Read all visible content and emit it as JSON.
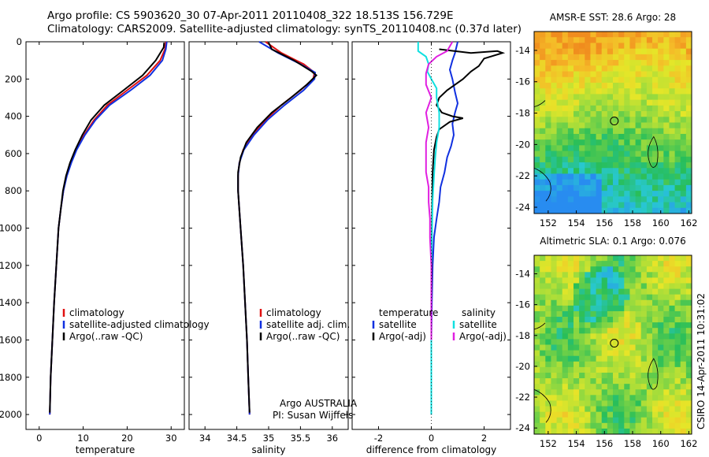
{
  "header": {
    "line1": "Argo profile: CS 5903620_30 07-Apr-2011 20110408_322 18.513S 156.729E",
    "line2": "Climatology: CARS2009. Satellite-adjusted climatology: synTS_20110408.nc (0.37d later)"
  },
  "colors": {
    "clim": "#e01010",
    "sat": "#1030e0",
    "argo": "#000000",
    "sal_sat": "#10e0e0",
    "sal_argo": "#e020e0"
  },
  "credits": {
    "org": "Argo AUSTRALIA",
    "pi": "PI: Susan Wijffels",
    "side": "CSIRO 14-Apr-2011 10:31:02"
  },
  "chart_data": [
    {
      "type": "line",
      "id": "temperature",
      "xlabel": "temperature",
      "xlim": [
        -3,
        33
      ],
      "ylim": [
        0,
        2080
      ],
      "xticks": [
        0,
        10,
        20,
        30
      ],
      "yticks": [
        0,
        200,
        400,
        600,
        800,
        1000,
        1200,
        1400,
        1600,
        1800,
        2000
      ],
      "legend": [
        "climatology",
        "satellite-adjusted climatology",
        "Argo(..raw -QC)"
      ],
      "series": [
        {
          "name": "climatology",
          "color": "clim",
          "points": [
            [
              28.8,
              0
            ],
            [
              28.6,
              40
            ],
            [
              27.5,
              100
            ],
            [
              24.5,
              180
            ],
            [
              20,
              260
            ],
            [
              15.5,
              340
            ],
            [
              12.5,
              420
            ],
            [
              10.2,
              500
            ],
            [
              8.4,
              580
            ],
            [
              7.2,
              650
            ],
            [
              6.2,
              720
            ],
            [
              5.5,
              800
            ],
            [
              4.9,
              900
            ],
            [
              4.4,
              1000
            ],
            [
              3.9,
              1200
            ],
            [
              3.4,
              1400
            ],
            [
              3.0,
              1600
            ],
            [
              2.6,
              1800
            ],
            [
              2.4,
              2000
            ]
          ]
        },
        {
          "name": "satellite-adjusted climatology",
          "color": "sat",
          "points": [
            [
              29.0,
              0
            ],
            [
              28.8,
              40
            ],
            [
              28,
              100
            ],
            [
              25.2,
              180
            ],
            [
              20.8,
              260
            ],
            [
              16,
              340
            ],
            [
              12.8,
              420
            ],
            [
              10.4,
              500
            ],
            [
              8.5,
              580
            ],
            [
              7.3,
              650
            ],
            [
              6.3,
              720
            ],
            [
              5.5,
              800
            ],
            [
              4.9,
              900
            ],
            [
              4.4,
              1000
            ],
            [
              3.9,
              1200
            ],
            [
              3.4,
              1400
            ],
            [
              3.0,
              1600
            ],
            [
              2.6,
              1800
            ],
            [
              2.4,
              2000
            ]
          ]
        },
        {
          "name": "Argo(..raw -QC)",
          "color": "argo",
          "points": [
            [
              28.4,
              5
            ],
            [
              28.3,
              30
            ],
            [
              26.5,
              100
            ],
            [
              23.5,
              180
            ],
            [
              19.2,
              260
            ],
            [
              14.8,
              340
            ],
            [
              11.8,
              420
            ],
            [
              9.8,
              500
            ],
            [
              8.2,
              580
            ],
            [
              7.0,
              650
            ],
            [
              6.1,
              720
            ],
            [
              5.4,
              800
            ],
            [
              4.9,
              900
            ],
            [
              4.4,
              1000
            ],
            [
              3.9,
              1200
            ],
            [
              3.4,
              1400
            ],
            [
              3.0,
              1600
            ],
            [
              2.6,
              1800
            ],
            [
              2.4,
              1990
            ]
          ]
        }
      ]
    },
    {
      "type": "line",
      "id": "salinity",
      "xlabel": "salinity",
      "xlim": [
        33.75,
        36.25
      ],
      "ylim": [
        0,
        2080
      ],
      "xticks": [
        34,
        34.5,
        35,
        35.5,
        36
      ],
      "yticks": [],
      "legend": [
        "climatology",
        "satellite adj. clim.",
        "Argo(..raw -QC)"
      ],
      "series": [
        {
          "name": "climatology",
          "color": "clim",
          "points": [
            [
              34.95,
              0
            ],
            [
              35.2,
              60
            ],
            [
              35.55,
              120
            ],
            [
              35.72,
              165
            ],
            [
              35.7,
              200
            ],
            [
              35.5,
              260
            ],
            [
              35.2,
              340
            ],
            [
              34.95,
              420
            ],
            [
              34.75,
              500
            ],
            [
              34.6,
              580
            ],
            [
              34.54,
              650
            ],
            [
              34.52,
              720
            ],
            [
              34.52,
              800
            ],
            [
              34.54,
              900
            ],
            [
              34.56,
              1000
            ],
            [
              34.6,
              1200
            ],
            [
              34.63,
              1400
            ],
            [
              34.66,
              1600
            ],
            [
              34.68,
              1800
            ],
            [
              34.7,
              2000
            ]
          ]
        },
        {
          "name": "satellite adj. clim.",
          "color": "sat",
          "points": [
            [
              34.85,
              0
            ],
            [
              35.15,
              60
            ],
            [
              35.5,
              120
            ],
            [
              35.73,
              165
            ],
            [
              35.72,
              200
            ],
            [
              35.55,
              260
            ],
            [
              35.25,
              340
            ],
            [
              34.98,
              420
            ],
            [
              34.77,
              500
            ],
            [
              34.61,
              580
            ],
            [
              34.54,
              650
            ],
            [
              34.52,
              720
            ],
            [
              34.52,
              800
            ],
            [
              34.54,
              900
            ],
            [
              34.56,
              1000
            ],
            [
              34.6,
              1200
            ],
            [
              34.63,
              1400
            ],
            [
              34.66,
              1600
            ],
            [
              34.68,
              1800
            ],
            [
              34.7,
              2000
            ]
          ]
        },
        {
          "name": "Argo(..raw -QC)",
          "color": "argo",
          "points": [
            [
              35.0,
              5
            ],
            [
              35.05,
              40
            ],
            [
              35.4,
              100
            ],
            [
              35.68,
              160
            ],
            [
              35.75,
              180
            ],
            [
              35.6,
              230
            ],
            [
              35.35,
              300
            ],
            [
              35.05,
              380
            ],
            [
              34.82,
              460
            ],
            [
              34.65,
              540
            ],
            [
              34.56,
              620
            ],
            [
              34.52,
              700
            ],
            [
              34.52,
              800
            ],
            [
              34.54,
              900
            ],
            [
              34.56,
              1000
            ],
            [
              34.6,
              1200
            ],
            [
              34.63,
              1400
            ],
            [
              34.66,
              1600
            ],
            [
              34.68,
              1800
            ],
            [
              34.7,
              1990
            ]
          ]
        }
      ]
    },
    {
      "type": "line",
      "id": "difference",
      "xlabel": "difference from climatology",
      "xlim": [
        -3,
        3
      ],
      "ylim": [
        0,
        2080
      ],
      "xticks": [
        -2,
        0,
        2
      ],
      "yticks": [],
      "legend_left_title": "temperature",
      "legend_right_title": "salinity",
      "legend": [
        "satellite",
        "Argo(-adj)",
        "satellite",
        "Argo(-adj)"
      ],
      "series": [
        {
          "name": "temperature satellite",
          "color": "sat",
          "points": [
            [
              1.0,
              0
            ],
            [
              0.9,
              60
            ],
            [
              0.8,
              100
            ],
            [
              0.7,
              150
            ],
            [
              0.8,
              200
            ],
            [
              0.9,
              270
            ],
            [
              1.0,
              330
            ],
            [
              0.9,
              380
            ],
            [
              0.8,
              440
            ],
            [
              0.85,
              500
            ],
            [
              0.75,
              560
            ],
            [
              0.6,
              620
            ],
            [
              0.5,
              700
            ],
            [
              0.35,
              780
            ],
            [
              0.3,
              860
            ],
            [
              0.2,
              950
            ],
            [
              0.1,
              1050
            ],
            [
              0.05,
              1200
            ],
            [
              0.02,
              1400
            ],
            [
              0.0,
              1600
            ],
            [
              0.0,
              2000
            ]
          ]
        },
        {
          "name": "temperature Argo(-adj)",
          "color": "argo",
          "points": [
            [
              0.3,
              40
            ],
            [
              1.5,
              60
            ],
            [
              2.5,
              50
            ],
            [
              2.7,
              60
            ],
            [
              2.0,
              90
            ],
            [
              1.8,
              130
            ],
            [
              1.5,
              160
            ],
            [
              1.2,
              200
            ],
            [
              0.6,
              260
            ],
            [
              0.3,
              300
            ],
            [
              0.2,
              340
            ],
            [
              0.4,
              380
            ],
            [
              0.8,
              400
            ],
            [
              1.2,
              410
            ],
            [
              0.7,
              430
            ],
            [
              0.3,
              470
            ],
            [
              0.2,
              510
            ],
            [
              0.1,
              580
            ],
            [
              0.05,
              700
            ],
            [
              0.02,
              1000
            ],
            [
              0.0,
              1400
            ],
            [
              0.0,
              2000
            ]
          ]
        },
        {
          "name": "salinity satellite",
          "color": "sal_sat",
          "points": [
            [
              -0.5,
              0
            ],
            [
              -0.5,
              50
            ],
            [
              -0.2,
              80
            ],
            [
              -0.1,
              120
            ],
            [
              -0.15,
              160
            ],
            [
              0.0,
              200
            ],
            [
              0.2,
              250
            ],
            [
              0.2,
              300
            ],
            [
              0.3,
              380
            ],
            [
              0.3,
              460
            ],
            [
              0.2,
              540
            ],
            [
              0.15,
              620
            ],
            [
              0.1,
              720
            ],
            [
              0.05,
              850
            ],
            [
              0.03,
              1000
            ],
            [
              0.0,
              1200
            ],
            [
              0.0,
              2000
            ]
          ]
        },
        {
          "name": "salinity Argo(-adj)",
          "color": "sal_argo",
          "points": [
            [
              0.8,
              0
            ],
            [
              0.6,
              50
            ],
            [
              0.2,
              80
            ],
            [
              -0.1,
              120
            ],
            [
              -0.2,
              170
            ],
            [
              -0.2,
              230
            ],
            [
              0.0,
              300
            ],
            [
              -0.2,
              380
            ],
            [
              -0.1,
              460
            ],
            [
              -0.2,
              540
            ],
            [
              -0.2,
              620
            ],
            [
              -0.2,
              700
            ],
            [
              -0.1,
              780
            ],
            [
              -0.1,
              860
            ],
            [
              -0.05,
              950
            ],
            [
              -0.05,
              1050
            ],
            [
              0.0,
              1200
            ],
            [
              0.0,
              1400
            ],
            [
              0.0,
              1600
            ]
          ]
        }
      ]
    },
    {
      "type": "heatmap",
      "id": "sst_map",
      "title": "AMSR-E SST: 28.6  Argo: 28",
      "xticks": [
        152,
        154,
        156,
        158,
        160,
        162
      ],
      "yticks": [
        -14,
        -16,
        -18,
        -20,
        -22,
        -24
      ],
      "xlim": [
        151,
        162.2
      ],
      "ylim": [
        -24.4,
        -12.8
      ],
      "argo_point": [
        156.7,
        -18.5
      ]
    },
    {
      "type": "heatmap",
      "id": "sla_map",
      "title": "Altimetric SLA: 0.1  Argo: 0.076",
      "xticks": [
        152,
        154,
        156,
        158,
        160,
        162
      ],
      "yticks": [
        -14,
        -16,
        -18,
        -20,
        -22,
        -24
      ],
      "xlim": [
        151,
        162.2
      ],
      "ylim": [
        -24.4,
        -12.8
      ],
      "argo_point": [
        156.7,
        -18.5
      ]
    }
  ]
}
